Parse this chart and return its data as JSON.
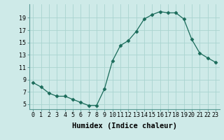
{
  "x": [
    0,
    1,
    2,
    3,
    4,
    5,
    6,
    7,
    8,
    9,
    10,
    11,
    12,
    13,
    14,
    15,
    16,
    17,
    18,
    19,
    20,
    21,
    22,
    23
  ],
  "y": [
    8.5,
    7.8,
    6.8,
    6.3,
    6.3,
    5.8,
    5.3,
    4.8,
    4.8,
    7.5,
    12.0,
    14.5,
    15.3,
    16.8,
    18.8,
    19.5,
    20.0,
    19.8,
    19.8,
    18.8,
    15.5,
    13.3,
    12.5,
    11.8
  ],
  "line_color": "#1a6b5a",
  "marker": "D",
  "marker_size": 2.5,
  "bg_color": "#ceeae8",
  "grid_color": "#aad4d0",
  "xlabel": "Humidex (Indice chaleur)",
  "ylabel_ticks": [
    5,
    7,
    9,
    11,
    13,
    15,
    17,
    19
  ],
  "xlim": [
    -0.5,
    23.5
  ],
  "ylim": [
    4.2,
    21.2
  ],
  "xticks": [
    0,
    1,
    2,
    3,
    4,
    5,
    6,
    7,
    8,
    9,
    10,
    11,
    12,
    13,
    14,
    15,
    16,
    17,
    18,
    19,
    20,
    21,
    22,
    23
  ],
  "xtick_labels": [
    "0",
    "1",
    "2",
    "3",
    "4",
    "5",
    "6",
    "7",
    "8",
    "9",
    "10",
    "11",
    "12",
    "13",
    "14",
    "15",
    "16",
    "17",
    "18",
    "19",
    "20",
    "21",
    "22",
    "23"
  ],
  "fontsize_axis": 6,
  "fontsize_label": 7.5
}
